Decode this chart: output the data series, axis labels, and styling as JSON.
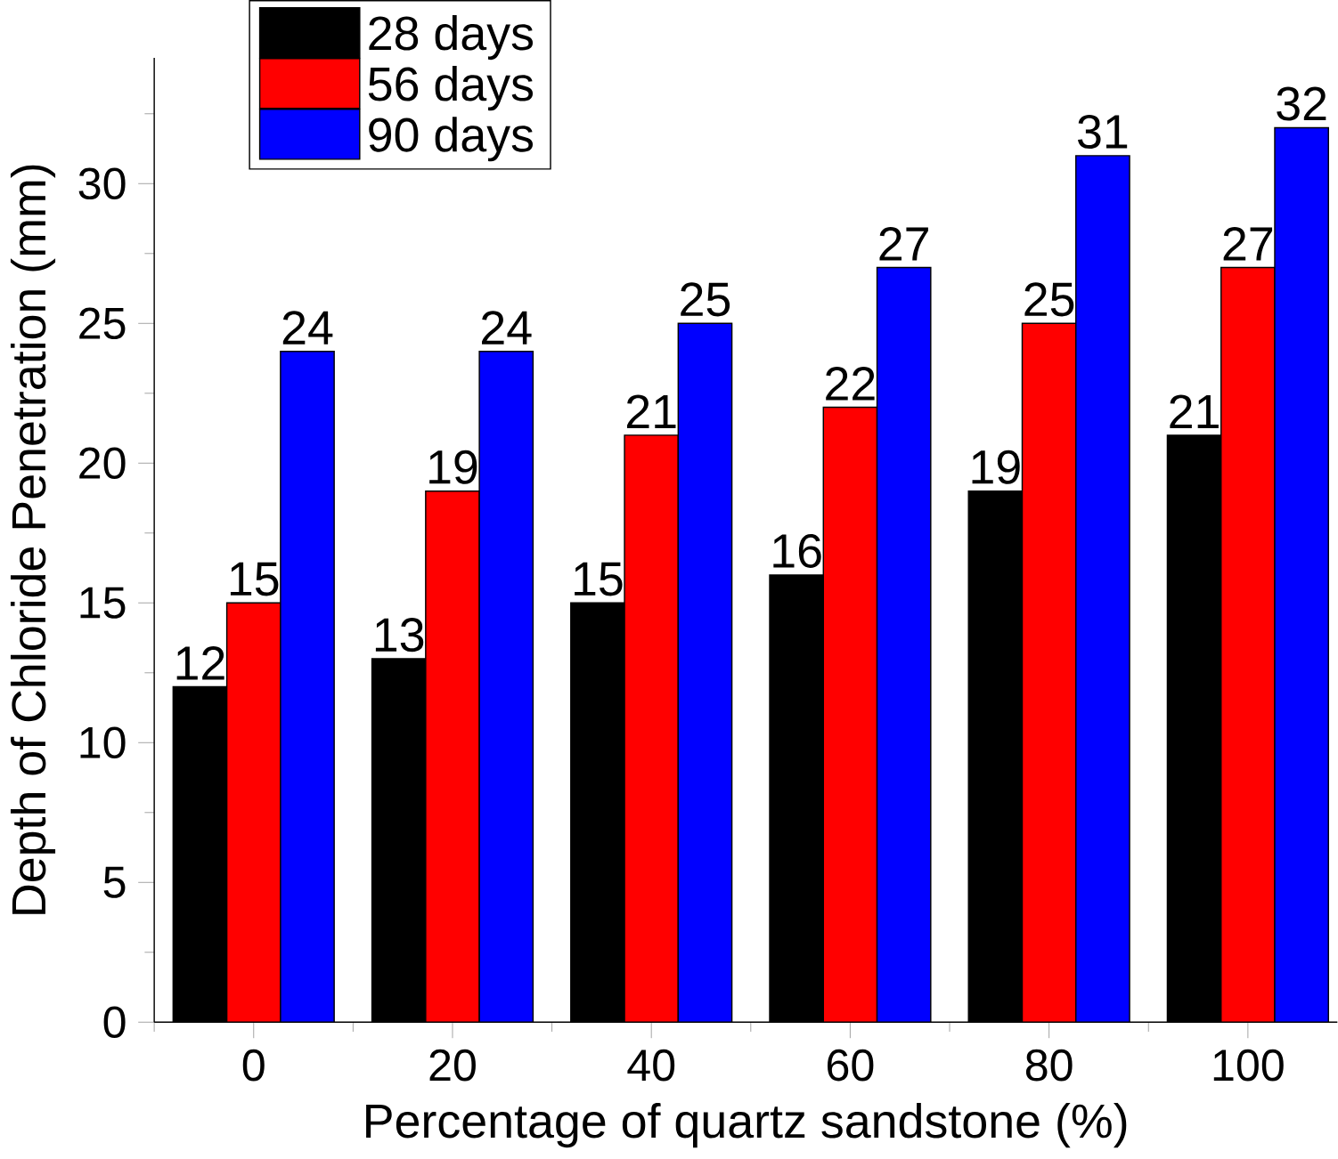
{
  "chart_data": {
    "type": "bar",
    "xlabel": "Percentage of quartz sandstone (%)",
    "ylabel": "Depth of Chloride Penetration (mm)",
    "categories": [
      "0",
      "20",
      "40",
      "60",
      "80",
      "100"
    ],
    "series": [
      {
        "name": "28 days",
        "color": "#000000",
        "values": [
          12,
          13,
          15,
          16,
          19,
          21
        ]
      },
      {
        "name": "56 days",
        "color": "#ff0000",
        "values": [
          15,
          19,
          21,
          22,
          25,
          27
        ]
      },
      {
        "name": "90 days",
        "color": "#0000ff",
        "values": [
          24,
          24,
          25,
          27,
          31,
          32
        ]
      }
    ],
    "ylim": [
      0,
      34.5
    ],
    "yticks": [
      0,
      5,
      10,
      15,
      20,
      25,
      30
    ],
    "data_labels": true,
    "legend": "top left",
    "grid": false
  }
}
